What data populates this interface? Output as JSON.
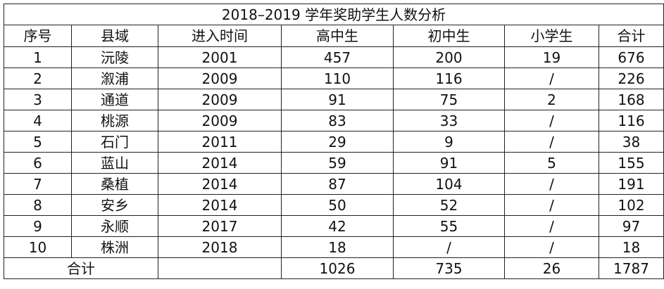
{
  "table": {
    "title": "2018–2019 学年奖助学生人数分析",
    "headers": [
      "序号",
      "县域",
      "进入时间",
      "高中生",
      "初中生",
      "小学生",
      "合计"
    ],
    "rows": [
      [
        "1",
        "沅陵",
        "2001",
        "457",
        "200",
        "19",
        "676"
      ],
      [
        "2",
        "溆浦",
        "2009",
        "110",
        "116",
        "/",
        "226"
      ],
      [
        "3",
        "通道",
        "2009",
        "91",
        "75",
        "2",
        "168"
      ],
      [
        "4",
        "桃源",
        "2009",
        "83",
        "33",
        "/",
        "116"
      ],
      [
        "5",
        "石门",
        "2011",
        "29",
        "9",
        "/",
        "38"
      ],
      [
        "6",
        "蓝山",
        "2014",
        "59",
        "91",
        "5",
        "155"
      ],
      [
        "7",
        "桑植",
        "2014",
        "87",
        "104",
        "/",
        "191"
      ],
      [
        "8",
        "安乡",
        "2014",
        "50",
        "52",
        "/",
        "102"
      ],
      [
        "9",
        "永顺",
        "2017",
        "42",
        "55",
        "/",
        "97"
      ],
      [
        "10",
        "株洲",
        "2018",
        "18",
        "/",
        "/",
        "18"
      ]
    ],
    "total": {
      "label": "合计",
      "year": "",
      "high": "1026",
      "middle": "735",
      "primary": "26",
      "total": "1787"
    }
  }
}
